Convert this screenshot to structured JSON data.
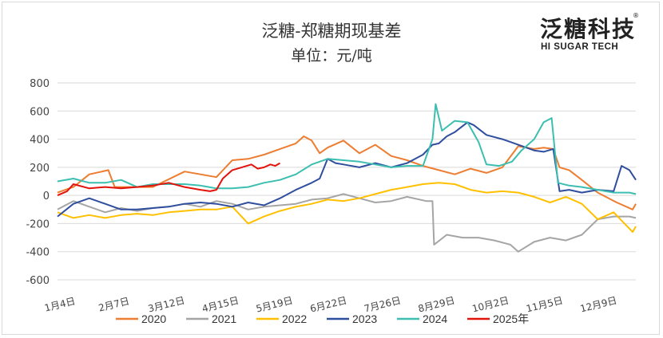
{
  "logo": {
    "cn": "泛糖科技",
    "en": "HI SUGAR TECH",
    "mark": "®"
  },
  "chart_data": {
    "type": "line",
    "title": "泛糖-郑糖期现基差",
    "subtitle": "单位：元/吨",
    "ylim": [
      -600,
      800
    ],
    "yticks": [
      800,
      600,
      400,
      200,
      0,
      -200,
      -400,
      -600
    ],
    "xlim": [
      0,
      364
    ],
    "xticks": [
      {
        "label": "1月4日",
        "day": 3
      },
      {
        "label": "2月7日",
        "day": 37
      },
      {
        "label": "3月12日",
        "day": 70
      },
      {
        "label": "4月15日",
        "day": 104
      },
      {
        "label": "5月19日",
        "day": 138
      },
      {
        "label": "6月22日",
        "day": 172
      },
      {
        "label": "7月26日",
        "day": 206
      },
      {
        "label": "8月29日",
        "day": 240
      },
      {
        "label": "10月2日",
        "day": 274
      },
      {
        "label": "11月5日",
        "day": 308
      },
      {
        "label": "12月9日",
        "day": 342
      }
    ],
    "grid": true,
    "legend_position": "bottom",
    "series": [
      {
        "name": "2020",
        "color": "#ed7d31",
        "points": [
          [
            0,
            20
          ],
          [
            10,
            60
          ],
          [
            20,
            150
          ],
          [
            32,
            180
          ],
          [
            36,
            60
          ],
          [
            60,
            60
          ],
          [
            80,
            170
          ],
          [
            90,
            150
          ],
          [
            100,
            130
          ],
          [
            110,
            250
          ],
          [
            120,
            260
          ],
          [
            130,
            290
          ],
          [
            140,
            330
          ],
          [
            150,
            370
          ],
          [
            155,
            420
          ],
          [
            160,
            390
          ],
          [
            165,
            300
          ],
          [
            170,
            340
          ],
          [
            180,
            390
          ],
          [
            190,
            300
          ],
          [
            200,
            360
          ],
          [
            210,
            280
          ],
          [
            220,
            250
          ],
          [
            230,
            210
          ],
          [
            240,
            180
          ],
          [
            250,
            150
          ],
          [
            260,
            190
          ],
          [
            270,
            160
          ],
          [
            280,
            200
          ],
          [
            290,
            350
          ],
          [
            300,
            330
          ],
          [
            306,
            340
          ],
          [
            312,
            330
          ],
          [
            316,
            200
          ],
          [
            322,
            180
          ],
          [
            330,
            110
          ],
          [
            340,
            20
          ],
          [
            352,
            -50
          ],
          [
            362,
            -100
          ],
          [
            364,
            -60
          ]
        ]
      },
      {
        "name": "2021",
        "color": "#a5a5a5",
        "points": [
          [
            0,
            -100
          ],
          [
            10,
            -40
          ],
          [
            20,
            -80
          ],
          [
            30,
            -120
          ],
          [
            40,
            -90
          ],
          [
            50,
            -110
          ],
          [
            60,
            -90
          ],
          [
            70,
            -80
          ],
          [
            80,
            -60
          ],
          [
            90,
            -80
          ],
          [
            100,
            -40
          ],
          [
            110,
            -60
          ],
          [
            120,
            -100
          ],
          [
            130,
            -80
          ],
          [
            140,
            -70
          ],
          [
            150,
            -60
          ],
          [
            160,
            -30
          ],
          [
            170,
            -20
          ],
          [
            180,
            10
          ],
          [
            190,
            -20
          ],
          [
            200,
            -50
          ],
          [
            210,
            -40
          ],
          [
            220,
            -10
          ],
          [
            232,
            -40
          ],
          [
            236,
            -40
          ],
          [
            237,
            -350
          ],
          [
            245,
            -280
          ],
          [
            255,
            -300
          ],
          [
            265,
            -300
          ],
          [
            275,
            -320
          ],
          [
            285,
            -350
          ],
          [
            290,
            -400
          ],
          [
            300,
            -330
          ],
          [
            310,
            -300
          ],
          [
            320,
            -320
          ],
          [
            330,
            -280
          ],
          [
            340,
            -170
          ],
          [
            350,
            -150
          ],
          [
            360,
            -150
          ],
          [
            364,
            -160
          ]
        ]
      },
      {
        "name": "2022",
        "color": "#ffc000",
        "points": [
          [
            0,
            -120
          ],
          [
            10,
            -160
          ],
          [
            20,
            -140
          ],
          [
            30,
            -160
          ],
          [
            40,
            -140
          ],
          [
            50,
            -130
          ],
          [
            60,
            -140
          ],
          [
            70,
            -120
          ],
          [
            80,
            -110
          ],
          [
            90,
            -100
          ],
          [
            100,
            -100
          ],
          [
            110,
            -80
          ],
          [
            120,
            -200
          ],
          [
            130,
            -150
          ],
          [
            140,
            -110
          ],
          [
            150,
            -80
          ],
          [
            160,
            -60
          ],
          [
            170,
            -30
          ],
          [
            180,
            -40
          ],
          [
            190,
            -20
          ],
          [
            200,
            10
          ],
          [
            210,
            40
          ],
          [
            220,
            60
          ],
          [
            230,
            80
          ],
          [
            240,
            90
          ],
          [
            250,
            80
          ],
          [
            260,
            40
          ],
          [
            270,
            20
          ],
          [
            280,
            30
          ],
          [
            290,
            20
          ],
          [
            300,
            -10
          ],
          [
            310,
            -50
          ],
          [
            320,
            -10
          ],
          [
            330,
            -60
          ],
          [
            340,
            -170
          ],
          [
            350,
            -120
          ],
          [
            356,
            -190
          ],
          [
            362,
            -260
          ],
          [
            364,
            -220
          ]
        ]
      },
      {
        "name": "2023",
        "color": "#2f4e9e",
        "points": [
          [
            0,
            -150
          ],
          [
            10,
            -60
          ],
          [
            20,
            -20
          ],
          [
            30,
            -60
          ],
          [
            40,
            -100
          ],
          [
            50,
            -100
          ],
          [
            60,
            -90
          ],
          [
            70,
            -80
          ],
          [
            80,
            -60
          ],
          [
            90,
            -50
          ],
          [
            100,
            -60
          ],
          [
            110,
            -80
          ],
          [
            120,
            -50
          ],
          [
            130,
            -70
          ],
          [
            140,
            -20
          ],
          [
            150,
            40
          ],
          [
            160,
            90
          ],
          [
            165,
            120
          ],
          [
            170,
            260
          ],
          [
            175,
            230
          ],
          [
            180,
            220
          ],
          [
            190,
            200
          ],
          [
            200,
            230
          ],
          [
            210,
            200
          ],
          [
            220,
            230
          ],
          [
            230,
            290
          ],
          [
            236,
            360
          ],
          [
            240,
            370
          ],
          [
            245,
            420
          ],
          [
            250,
            450
          ],
          [
            258,
            520
          ],
          [
            262,
            500
          ],
          [
            270,
            430
          ],
          [
            280,
            400
          ],
          [
            290,
            360
          ],
          [
            300,
            320
          ],
          [
            306,
            310
          ],
          [
            312,
            330
          ],
          [
            316,
            30
          ],
          [
            322,
            40
          ],
          [
            330,
            20
          ],
          [
            340,
            40
          ],
          [
            350,
            30
          ],
          [
            355,
            210
          ],
          [
            360,
            180
          ],
          [
            364,
            110
          ]
        ]
      },
      {
        "name": "2024",
        "color": "#3cbfb0",
        "points": [
          [
            0,
            100
          ],
          [
            10,
            120
          ],
          [
            20,
            90
          ],
          [
            30,
            90
          ],
          [
            40,
            110
          ],
          [
            50,
            60
          ],
          [
            60,
            80
          ],
          [
            70,
            80
          ],
          [
            80,
            80
          ],
          [
            90,
            70
          ],
          [
            100,
            50
          ],
          [
            110,
            50
          ],
          [
            120,
            60
          ],
          [
            130,
            90
          ],
          [
            140,
            110
          ],
          [
            150,
            150
          ],
          [
            160,
            220
          ],
          [
            170,
            260
          ],
          [
            180,
            250
          ],
          [
            190,
            240
          ],
          [
            200,
            220
          ],
          [
            210,
            200
          ],
          [
            220,
            210
          ],
          [
            230,
            210
          ],
          [
            236,
            400
          ],
          [
            238,
            650
          ],
          [
            242,
            460
          ],
          [
            250,
            530
          ],
          [
            258,
            520
          ],
          [
            265,
            380
          ],
          [
            270,
            220
          ],
          [
            278,
            210
          ],
          [
            286,
            240
          ],
          [
            292,
            320
          ],
          [
            300,
            400
          ],
          [
            306,
            520
          ],
          [
            311,
            550
          ],
          [
            315,
            90
          ],
          [
            322,
            70
          ],
          [
            330,
            60
          ],
          [
            340,
            40
          ],
          [
            350,
            20
          ],
          [
            360,
            20
          ],
          [
            364,
            10
          ]
        ]
      },
      {
        "name": "2025年",
        "color": "#e3120b",
        "points": [
          [
            0,
            0
          ],
          [
            6,
            30
          ],
          [
            10,
            80
          ],
          [
            20,
            50
          ],
          [
            30,
            60
          ],
          [
            40,
            50
          ],
          [
            50,
            60
          ],
          [
            60,
            70
          ],
          [
            70,
            90
          ],
          [
            80,
            60
          ],
          [
            90,
            40
          ],
          [
            96,
            30
          ],
          [
            100,
            40
          ],
          [
            104,
            120
          ],
          [
            110,
            180
          ],
          [
            116,
            200
          ],
          [
            122,
            220
          ],
          [
            126,
            190
          ],
          [
            130,
            200
          ],
          [
            134,
            220
          ],
          [
            137,
            210
          ],
          [
            140,
            230
          ]
        ]
      }
    ]
  }
}
